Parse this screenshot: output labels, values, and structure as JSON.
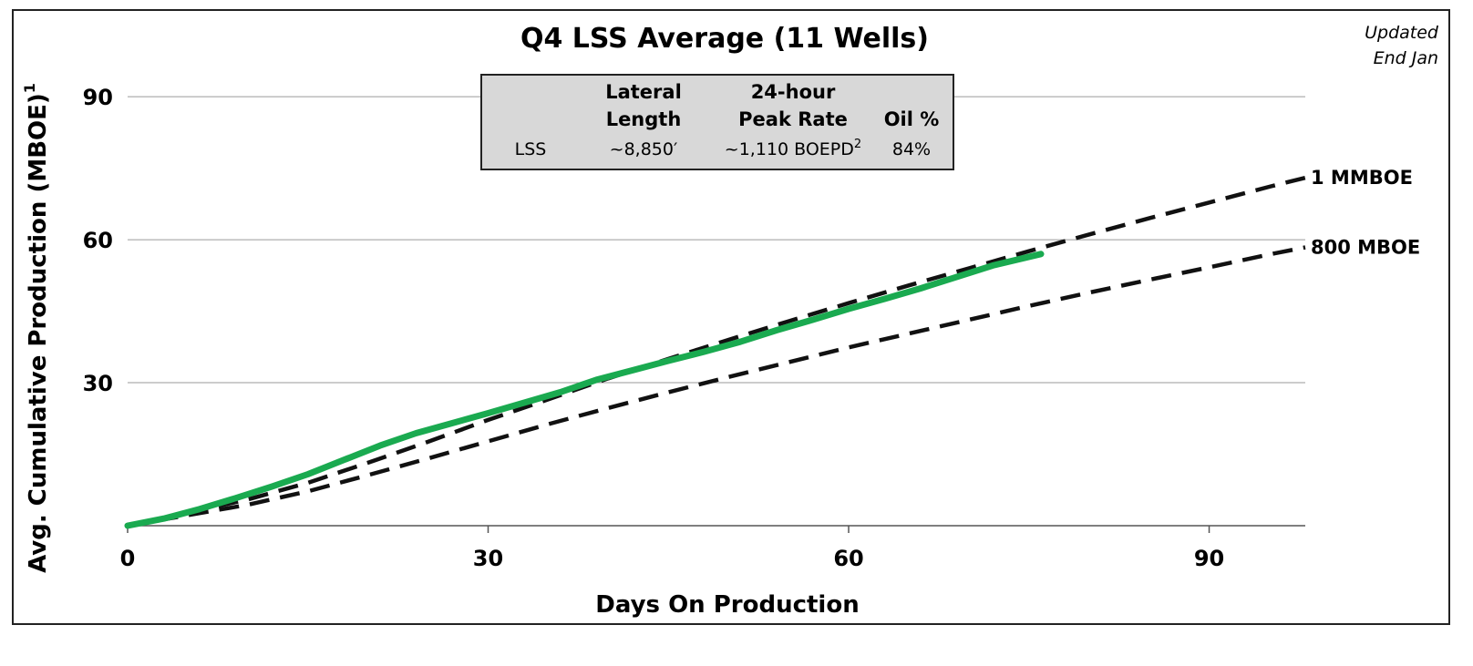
{
  "note": [
    "Updated",
    "End Jan"
  ],
  "table": {
    "header_line1": [
      "",
      "Lateral",
      "24-hour",
      ""
    ],
    "header_line2": [
      "",
      "Length",
      "Peak Rate",
      "Oil %"
    ],
    "row": {
      "name": "LSS",
      "lateral_length": "~8,850′",
      "peak_rate": "~1,110 BOEPD",
      "peak_rate_sup": "2",
      "oil_pct": "84%"
    }
  },
  "chart_data": {
    "type": "line",
    "title": "Q4 LSS Average (11 Wells)",
    "xlabel": "Days On Production",
    "ylabel": "Avg. Cumulative Production (MBOE)",
    "ylabel_sup": "1",
    "xlim": [
      0,
      98
    ],
    "ylim": [
      0,
      95
    ],
    "xticks": [
      0,
      30,
      60,
      90
    ],
    "yticks": [
      30,
      60,
      90
    ],
    "grid": "horizontal",
    "series": [
      {
        "name": "1 MMBOE",
        "style": "dashed",
        "color": "#111111",
        "x": [
          0,
          5,
          10,
          15,
          20,
          25,
          30,
          35,
          40,
          45,
          50,
          55,
          60,
          65,
          70,
          75,
          80,
          85,
          90,
          95,
          98
        ],
        "y": [
          0,
          2.7,
          5.5,
          9.0,
          13.2,
          17.6,
          22.2,
          26.5,
          30.9,
          35.0,
          39.0,
          42.9,
          46.7,
          50.4,
          54.0,
          57.6,
          61.1,
          64.5,
          67.8,
          71.1,
          73.0
        ]
      },
      {
        "name": "800 MBOE",
        "style": "dashed",
        "color": "#111111",
        "x": [
          0,
          5,
          10,
          15,
          20,
          25,
          30,
          35,
          40,
          45,
          50,
          55,
          60,
          65,
          70,
          75,
          80,
          85,
          90,
          95,
          98
        ],
        "y": [
          0,
          2.2,
          4.4,
          7.2,
          10.6,
          14.1,
          17.7,
          21.3,
          24.7,
          28.0,
          31.2,
          34.3,
          37.4,
          40.3,
          43.2,
          46.1,
          48.9,
          51.6,
          54.2,
          56.9,
          58.4
        ]
      },
      {
        "name": "",
        "style": "solid",
        "color": "#1aaa50",
        "x": [
          0,
          3,
          6,
          9,
          12,
          15,
          18,
          21,
          24,
          27,
          30,
          33,
          36,
          39,
          42,
          45,
          48,
          51,
          54,
          57,
          60,
          63,
          66,
          69,
          72,
          76
        ],
        "y": [
          0,
          1.5,
          3.5,
          5.8,
          8.2,
          10.8,
          13.8,
          16.8,
          19.4,
          21.5,
          23.6,
          25.8,
          28.0,
          30.6,
          32.6,
          34.6,
          36.5,
          38.6,
          41.0,
          43.2,
          45.5,
          47.6,
          49.8,
          52.2,
          54.6,
          57.0
        ]
      }
    ]
  }
}
